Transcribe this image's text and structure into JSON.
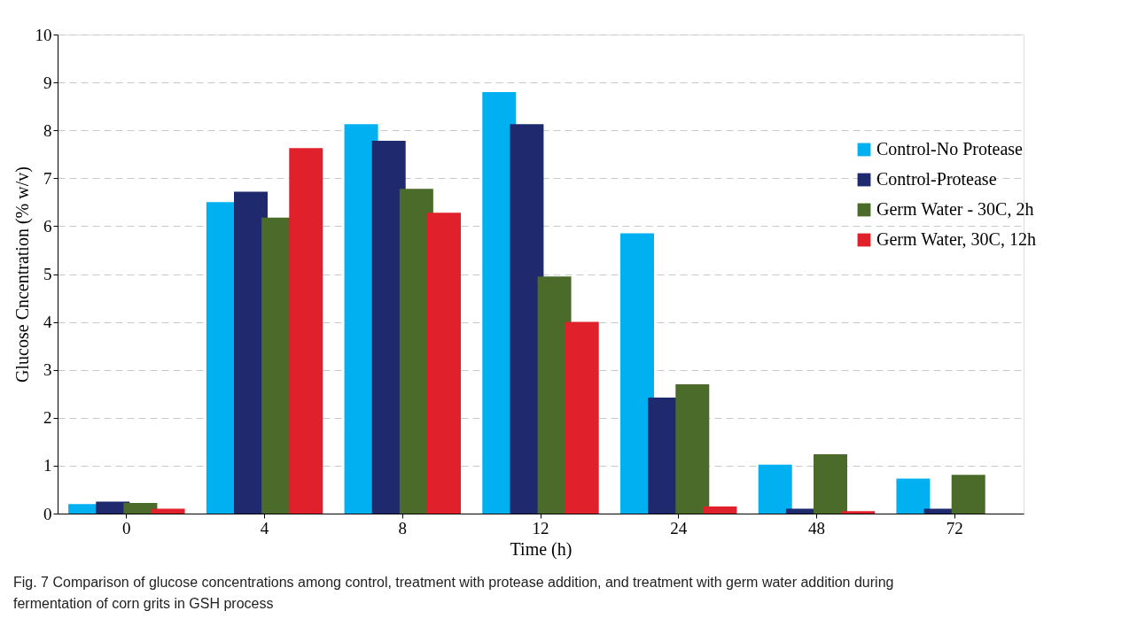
{
  "chart_data": {
    "type": "bar",
    "xlabel": "Time (h)",
    "ylabel": "Glucose Cncentration (% w/v)",
    "categories": [
      "0",
      "4",
      "8",
      "12",
      "24",
      "48",
      "72"
    ],
    "series": [
      {
        "name": "Control-No Protease",
        "color": "#00b0f0",
        "values": [
          0.2,
          6.5,
          8.13,
          8.8,
          5.85,
          1.02,
          0.73
        ]
      },
      {
        "name": "Control-Protease",
        "color": "#1f2a6e",
        "values": [
          0.25,
          6.72,
          7.78,
          8.13,
          2.42,
          0.1,
          0.1
        ]
      },
      {
        "name": "Germ Water - 30C, 2h",
        "color": "#4b6b2a",
        "values": [
          0.22,
          6.18,
          6.78,
          4.95,
          2.7,
          1.24,
          0.81
        ]
      },
      {
        "name": "Germ Water, 30C, 12h",
        "color": "#e0202a",
        "values": [
          0.1,
          7.63,
          6.28,
          4.0,
          0.15,
          0.05,
          null
        ]
      }
    ],
    "ylim": [
      0,
      10
    ],
    "yticks": [
      0,
      1,
      2,
      3,
      4,
      5,
      6,
      7,
      8,
      9,
      10
    ],
    "grid": "y",
    "legend": "right",
    "annotations": [
      "Fig. 7  Comparison of glucose concentrations among control, treatment with protease addition, and treatment with germ water addition during fermentation of corn grits in GSH process"
    ]
  }
}
